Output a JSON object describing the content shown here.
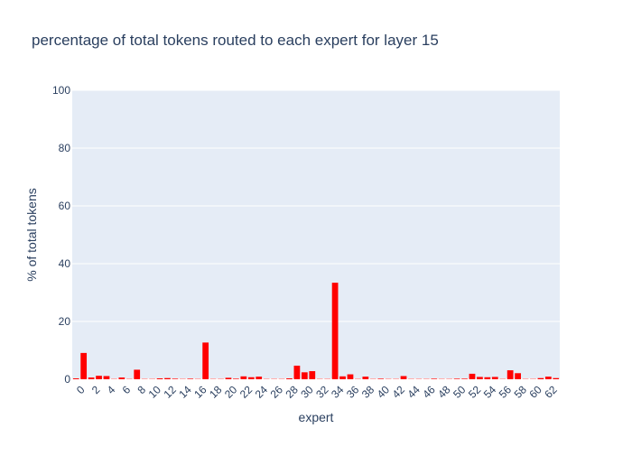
{
  "chart_data": {
    "type": "bar",
    "title": "percentage of total tokens routed to each expert for layer 15",
    "xlabel": "expert",
    "ylabel": "% of total tokens",
    "ylim": [
      0,
      100
    ],
    "yticks": [
      0,
      20,
      40,
      60,
      80,
      100
    ],
    "xticks": [
      0,
      2,
      4,
      6,
      8,
      10,
      12,
      14,
      16,
      18,
      20,
      22,
      24,
      26,
      28,
      30,
      32,
      34,
      36,
      38,
      40,
      42,
      44,
      46,
      48,
      50,
      52,
      54,
      56,
      58,
      60,
      62
    ],
    "grid": true,
    "bar_color": "#ff0000",
    "plot_background": "#e5ecf6",
    "categories": [
      0,
      1,
      2,
      3,
      4,
      5,
      6,
      7,
      8,
      9,
      10,
      11,
      12,
      13,
      14,
      15,
      16,
      17,
      18,
      19,
      20,
      21,
      22,
      23,
      24,
      25,
      26,
      27,
      28,
      29,
      30,
      31,
      32,
      33,
      34,
      35,
      36,
      37,
      38,
      39,
      40,
      41,
      42,
      43,
      44,
      45,
      46,
      47,
      48,
      49,
      50,
      51,
      52,
      53,
      54,
      55,
      56,
      57,
      58,
      59,
      60,
      61,
      62,
      63
    ],
    "values": [
      0.3,
      9.1,
      0.6,
      1.2,
      1.1,
      0.1,
      0.6,
      0.1,
      3.3,
      0.1,
      0.1,
      0.3,
      0.4,
      0.2,
      0.1,
      0.2,
      0.1,
      12.7,
      0.1,
      0.1,
      0.5,
      0.2,
      1.0,
      0.7,
      0.9,
      0.1,
      0.1,
      0.1,
      0.3,
      4.7,
      2.4,
      2.8,
      0.1,
      0.1,
      33.4,
      1.0,
      1.7,
      0.1,
      0.9,
      0.1,
      0.2,
      0.1,
      0.1,
      1.1,
      0.1,
      0.1,
      0.1,
      0.2,
      0.1,
      0.1,
      0.2,
      0.2,
      1.9,
      0.8,
      0.7,
      0.8,
      0.1,
      3.1,
      2.1,
      0.1,
      0.1,
      0.4,
      0.9,
      0.4
    ]
  }
}
